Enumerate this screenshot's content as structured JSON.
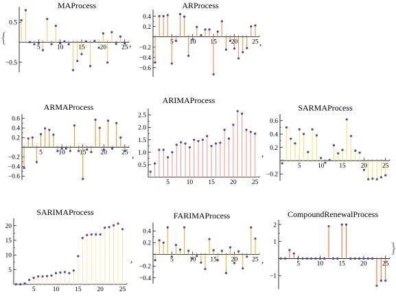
{
  "brace_open": "{",
  "brace_close": "}",
  "separator": ",",
  "colors": {
    "stem": "#f0a030",
    "point": "#4a4a9a",
    "axis": "#000000"
  },
  "chart_data": [
    {
      "type": "stem",
      "title": "MAProcess",
      "xlim": [
        0.5,
        26
      ],
      "ylim": [
        -0.75,
        0.85
      ],
      "xticks": [
        5,
        10,
        15,
        20,
        25
      ],
      "yticks": [
        -0.5,
        0.5
      ],
      "xtick_labels": [
        "5",
        "10",
        "15",
        "20",
        "25"
      ],
      "ytick_labels": [
        "−0.5",
        "0.5"
      ],
      "stem_color": "#f0d070",
      "x": [
        1,
        2,
        3,
        4,
        5,
        6,
        7,
        8,
        9,
        10,
        11,
        12,
        13,
        14,
        15,
        16,
        17,
        18,
        19,
        20,
        21,
        22,
        23,
        24,
        25
      ],
      "values": [
        0.55,
        0.8,
        0.0,
        -0.05,
        -0.02,
        -0.2,
        0.58,
        -0.05,
        0.41,
        -0.03,
        0.02,
        -0.05,
        -0.7,
        -0.47,
        -0.3,
        0.02,
        -0.6,
        0.03,
        -0.14,
        0.22,
        -0.51,
        0.25,
        -0.04,
        0.14,
        -0.03
      ]
    },
    {
      "type": "stem",
      "title": "ARProcess",
      "xlim": [
        0.5,
        26
      ],
      "ylim": [
        -0.78,
        0.5
      ],
      "xticks": [
        5,
        10,
        15,
        20,
        25
      ],
      "yticks": [
        -0.6,
        -0.4,
        -0.2,
        0.2,
        0.4
      ],
      "xtick_labels": [
        "5",
        "10",
        "15",
        "20",
        "25"
      ],
      "ytick_labels": [
        "−0.6",
        "−0.4",
        "−0.2",
        "0.2",
        "0.4"
      ],
      "stem_color": "#f09050",
      "x": [
        1,
        2,
        3,
        4,
        5,
        6,
        7,
        8,
        9,
        10,
        11,
        12,
        13,
        14,
        15,
        16,
        17,
        18,
        19,
        20,
        21,
        22,
        23,
        24,
        25
      ],
      "values": [
        -0.5,
        0.4,
        0.4,
        0.42,
        -0.52,
        -0.08,
        0.44,
        0.39,
        -0.37,
        -0.05,
        0.19,
        0.03,
        0.14,
        0.14,
        -0.73,
        0.1,
        0.3,
        -0.25,
        -0.08,
        -0.23,
        -0.42,
        -0.3,
        -0.22,
        0.2,
        0.22
      ]
    },
    {
      "type": "stem",
      "title": "ARMAProcess",
      "xlim": [
        0.5,
        26
      ],
      "ylim": [
        -0.68,
        0.66
      ],
      "xticks": [
        5,
        10,
        15,
        20,
        25
      ],
      "yticks": [
        -0.6,
        -0.4,
        -0.2,
        0.2,
        0.4,
        0.6
      ],
      "xtick_labels": [
        "5",
        "10",
        "15",
        "20",
        "25"
      ],
      "ytick_labels": [
        "−0.6",
        "−0.4",
        "−0.2",
        "0.2",
        "0.4",
        "0.6"
      ],
      "stem_color": "#d8a030",
      "x": [
        1,
        2,
        3,
        4,
        5,
        6,
        7,
        8,
        9,
        10,
        11,
        12,
        13,
        14,
        15,
        16,
        17,
        18,
        19,
        20,
        21,
        22,
        23,
        24,
        25
      ],
      "values": [
        -0.43,
        0.18,
        0.2,
        -0.31,
        0.27,
        0.39,
        0.36,
        0.26,
        -0.08,
        -0.03,
        -0.03,
        -0.08,
        0.45,
        -0.08,
        -0.66,
        -0.05,
        -0.1,
        0.57,
        0.4,
        -0.05,
        0.55,
        -0.03,
        0.5,
        0.2,
        -0.08
      ]
    },
    {
      "type": "stem",
      "title": "ARIMAProcess",
      "xlim": [
        0.5,
        26
      ],
      "ylim": [
        0,
        2.7
      ],
      "xticks": [
        5,
        10,
        15,
        20,
        25
      ],
      "yticks": [
        0.5,
        1.0,
        1.5,
        2.0,
        2.5
      ],
      "xtick_labels": [
        "5",
        "10",
        "15",
        "20",
        "25"
      ],
      "ytick_labels": [
        "0.5",
        "1.0",
        "1.5",
        "2.0",
        "2.5"
      ],
      "stem_color": "#f0a090",
      "x": [
        1,
        2,
        3,
        4,
        5,
        6,
        7,
        8,
        9,
        10,
        11,
        12,
        13,
        14,
        15,
        16,
        17,
        18,
        19,
        20,
        21,
        22,
        23,
        24,
        25
      ],
      "values": [
        0.22,
        0.55,
        1.1,
        1.1,
        0.8,
        1.0,
        1.3,
        1.4,
        1.35,
        1.2,
        1.5,
        1.45,
        1.5,
        1.65,
        1.25,
        1.35,
        1.38,
        1.9,
        1.55,
        2.1,
        2.65,
        2.55,
        1.9,
        1.82,
        1.75
      ]
    },
    {
      "type": "stem",
      "title": "SARMAProcess",
      "xlim": [
        0.5,
        26
      ],
      "ylim": [
        -0.3,
        0.68
      ],
      "xticks": [
        5,
        10,
        15,
        20,
        25
      ],
      "yticks": [
        -0.2,
        0.2,
        0.4,
        0.6
      ],
      "xtick_labels": [
        "5",
        "10",
        "15",
        "20",
        "25"
      ],
      "ytick_labels": [
        "−0.2",
        "0.2",
        "0.4",
        "0.6"
      ],
      "stem_color": "#f0e870",
      "x": [
        1,
        2,
        3,
        4,
        5,
        6,
        7,
        8,
        9,
        10,
        11,
        12,
        13,
        14,
        15,
        16,
        17,
        18,
        19,
        20,
        21,
        22,
        23,
        24,
        25
      ],
      "values": [
        -0.04,
        0.5,
        0.33,
        0.26,
        0.47,
        0.4,
        0.13,
        0.47,
        0.38,
        0.04,
        -0.03,
        0.01,
        0.23,
        0.11,
        0.16,
        0.62,
        0.37,
        0.15,
        0.12,
        -0.14,
        -0.28,
        -0.27,
        -0.28,
        -0.25,
        -0.22
      ]
    },
    {
      "type": "stem",
      "title": "SARIMAProcess",
      "xlim": [
        0.5,
        26
      ],
      "ylim": [
        0,
        22
      ],
      "xticks": [
        5,
        10,
        15,
        20,
        25
      ],
      "yticks": [
        5,
        10,
        15,
        20
      ],
      "xtick_labels": [
        "5",
        "10",
        "15",
        "20",
        "25"
      ],
      "ytick_labels": [
        "5",
        "10",
        "15",
        "20"
      ],
      "stem_color": "#f8ecb0",
      "x": [
        1,
        2,
        3,
        4,
        5,
        6,
        7,
        8,
        9,
        10,
        11,
        12,
        13,
        14,
        15,
        16,
        17,
        18,
        19,
        20,
        21,
        22,
        23,
        24,
        25
      ],
      "values": [
        0,
        0,
        0.3,
        1.5,
        2.2,
        2.7,
        2.7,
        2.8,
        3.0,
        3.8,
        4.0,
        4.2,
        3.8,
        4.7,
        9.6,
        15.8,
        16.8,
        17.0,
        17.0,
        17.0,
        19.3,
        19.5,
        20.1,
        20.7,
        18.8
      ]
    },
    {
      "type": "stem",
      "title": "FARIMAProcess",
      "xlim": [
        0.5,
        26
      ],
      "ylim": [
        -0.5,
        0.52
      ],
      "xticks": [
        5,
        10,
        15,
        20,
        25
      ],
      "yticks": [
        -0.4,
        -0.2,
        0.2,
        0.4
      ],
      "xtick_labels": [
        "5",
        "10",
        "15",
        "20",
        "25"
      ],
      "ytick_labels": [
        "−0.4",
        "−0.2",
        "0.2",
        "0.4"
      ],
      "stem_color": "#e8b030",
      "x": [
        1,
        2,
        3,
        4,
        5,
        6,
        7,
        8,
        9,
        10,
        11,
        12,
        13,
        14,
        15,
        16,
        17,
        18,
        19,
        20,
        21,
        22,
        23,
        24,
        25
      ],
      "values": [
        -0.1,
        0.24,
        0.2,
        0.46,
        -0.04,
        0.16,
        0.08,
        0.46,
        0.06,
        -0.07,
        -0.03,
        -0.14,
        -0.25,
        0.26,
        0.07,
        -0.1,
        0.06,
        -0.32,
        0.12,
        -0.15,
        0.05,
        -0.24,
        -0.04,
        0.46,
        0.27
      ]
    },
    {
      "type": "stem",
      "title": "CompoundRenewalProcess",
      "xlim": [
        0.5,
        26
      ],
      "ylim": [
        -1.8,
        2.2
      ],
      "xticks": [
        5,
        10,
        15,
        20,
        25
      ],
      "yticks": [
        -1,
        1,
        2
      ],
      "xtick_labels": [
        "5",
        "10",
        "15",
        "20",
        "25"
      ],
      "ytick_labels": [
        "−1",
        "1",
        "2"
      ],
      "stem_color": "#f07040",
      "x": [
        1,
        2,
        3,
        4,
        5,
        6,
        7,
        8,
        9,
        10,
        11,
        12,
        13,
        14,
        15,
        16,
        17,
        18,
        19,
        20,
        21,
        22,
        23,
        24,
        25
      ],
      "values": [
        0,
        0,
        0.5,
        0.3,
        0,
        0,
        0,
        0,
        0,
        0,
        0,
        1.9,
        0,
        0,
        2.0,
        2.0,
        0,
        0,
        0,
        0,
        0,
        0,
        -1.6,
        -1.3,
        -1.3
      ]
    }
  ]
}
